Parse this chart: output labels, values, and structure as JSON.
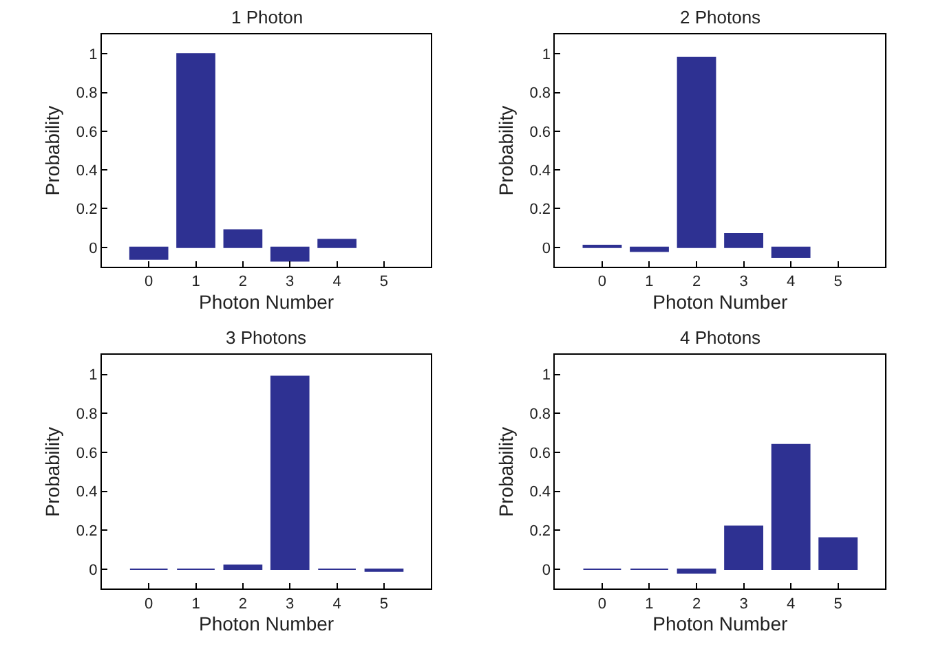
{
  "chart_data": [
    {
      "type": "bar",
      "title": "1 Photon",
      "xlabel": "Photon Number",
      "ylabel": "Probability",
      "x": [
        0,
        1,
        2,
        3,
        4
      ],
      "values": [
        -0.06,
        1.0,
        0.09,
        -0.07,
        0.04
      ],
      "color": "#2e3192",
      "xlim": [
        -1,
        6
      ],
      "xticks": [
        0,
        1,
        2,
        3,
        4,
        5
      ],
      "ylim": [
        -0.1,
        1.1
      ],
      "yticks": [
        0,
        0.2,
        0.4,
        0.6,
        0.8,
        1
      ]
    },
    {
      "type": "bar",
      "title": "2 Photons",
      "xlabel": "Photon Number",
      "ylabel": "Probability",
      "x": [
        0,
        1,
        2,
        3,
        4
      ],
      "values": [
        0.01,
        -0.02,
        0.98,
        0.07,
        -0.05
      ],
      "color": "#2e3192",
      "xlim": [
        -1,
        6
      ],
      "xticks": [
        0,
        1,
        2,
        3,
        4,
        5
      ],
      "ylim": [
        -0.1,
        1.1
      ],
      "yticks": [
        0,
        0.2,
        0.4,
        0.6,
        0.8,
        1
      ]
    },
    {
      "type": "bar",
      "title": "3 Photons",
      "xlabel": "Photon Number",
      "ylabel": "Probability",
      "x": [
        0,
        1,
        2,
        3,
        4,
        5
      ],
      "values": [
        0,
        0,
        0.02,
        0.99,
        0,
        -0.01
      ],
      "color": "#2e3192",
      "xlim": [
        -1,
        6
      ],
      "xticks": [
        0,
        1,
        2,
        3,
        4,
        5
      ],
      "ylim": [
        -0.1,
        1.1
      ],
      "yticks": [
        0,
        0.2,
        0.4,
        0.6,
        0.8,
        1
      ]
    },
    {
      "type": "bar",
      "title": "4 Photons",
      "xlabel": "Photon Number",
      "ylabel": "Probability",
      "x": [
        0,
        1,
        2,
        3,
        4,
        5
      ],
      "values": [
        0,
        0,
        -0.02,
        0.22,
        0.64,
        0.16
      ],
      "color": "#2e3192",
      "xlim": [
        -1,
        6
      ],
      "xticks": [
        0,
        1,
        2,
        3,
        4,
        5
      ],
      "ylim": [
        -0.1,
        1.1
      ],
      "yticks": [
        0,
        0.2,
        0.4,
        0.6,
        0.8,
        1
      ]
    }
  ]
}
